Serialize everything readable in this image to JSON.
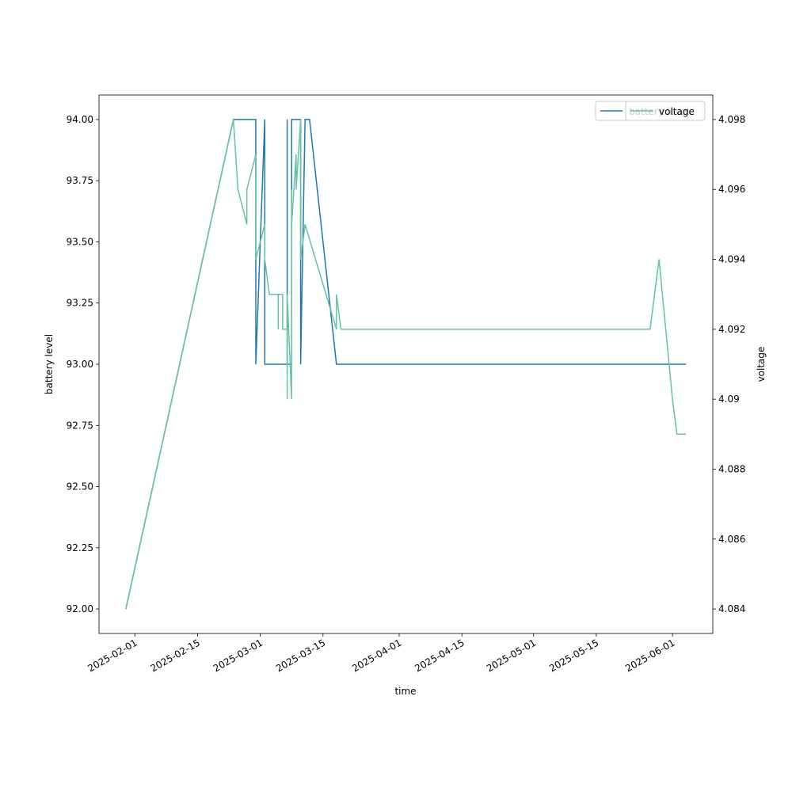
{
  "chart_data": {
    "type": "line",
    "x_label": "time",
    "y_label": "battery level",
    "y2_label": "voltage",
    "legend": "upper right",
    "xlim": [
      "2025-01-24",
      "2025-06-10"
    ],
    "xticks": [
      "2025-02-01",
      "2025-02-15",
      "2025-03-01",
      "2025-03-15",
      "2025-04-01",
      "2025-04-15",
      "2025-05-01",
      "2025-05-15",
      "2025-06-01"
    ],
    "ylim": [
      91.9,
      94.1
    ],
    "yticks": [
      {
        "value": 92,
        "label": "92.00"
      },
      {
        "value": 92.25,
        "label": "92.25"
      },
      {
        "value": 92.5,
        "label": "92.50"
      },
      {
        "value": 92.75,
        "label": "92.75"
      },
      {
        "value": 93,
        "label": "93.00"
      },
      {
        "value": 93.25,
        "label": "93.25"
      },
      {
        "value": 93.5,
        "label": "93.50"
      },
      {
        "value": 93.75,
        "label": "93.75"
      },
      {
        "value": 94,
        "label": "94.00"
      }
    ],
    "y2lim": [
      4.0833,
      4.0987
    ],
    "y2ticks": [
      4.084,
      4.086,
      4.088,
      4.09,
      4.092,
      4.094,
      4.096,
      4.098
    ],
    "series": [
      {
        "name": "battery level",
        "color": "#1f77b4",
        "axis": "y",
        "x": [
          "2025-01-30",
          "2025-02-23",
          "2025-02-28",
          "2025-02-28",
          "2025-03-02",
          "2025-03-02",
          "2025-03-07",
          "2025-03-07",
          "2025-03-07",
          "2025-03-08",
          "2025-03-08",
          "2025-03-10",
          "2025-03-10",
          "2025-03-11",
          "2025-03-12",
          "2025-03-18",
          "2025-06-04"
        ],
        "values": [
          92,
          94,
          94,
          93,
          94,
          93,
          93,
          94,
          93,
          93,
          94,
          94,
          93,
          94,
          94,
          93,
          93
        ]
      },
      {
        "name": "voltage",
        "color": "#66c2a5",
        "axis": "y2",
        "x": [
          "2025-01-30",
          "2025-02-23",
          "2025-02-24",
          "2025-02-26",
          "2025-02-26",
          "2025-02-28",
          "2025-02-28",
          "2025-03-02",
          "2025-03-02",
          "2025-03-03",
          "2025-03-05",
          "2025-03-05",
          "2025-03-05",
          "2025-03-06",
          "2025-03-06",
          "2025-03-07",
          "2025-03-07",
          "2025-03-07",
          "2025-03-08",
          "2025-03-08",
          "2025-03-08",
          "2025-03-09",
          "2025-03-09",
          "2025-03-10",
          "2025-03-10",
          "2025-03-11",
          "2025-03-18",
          "2025-03-18",
          "2025-03-19",
          "2025-05-27",
          "2025-05-29",
          "2025-06-01",
          "2025-06-02",
          "2025-06-04"
        ],
        "values": [
          4.084,
          4.098,
          4.096,
          4.095,
          4.096,
          4.097,
          4.094,
          4.095,
          4.094,
          4.093,
          4.093,
          4.092,
          4.093,
          4.093,
          4.092,
          4.092,
          4.09,
          4.093,
          4.09,
          4.096,
          4.095,
          4.097,
          4.096,
          4.098,
          4.094,
          4.095,
          4.092,
          4.093,
          4.092,
          4.092,
          4.094,
          4.09,
          4.089,
          4.089
        ]
      }
    ]
  }
}
